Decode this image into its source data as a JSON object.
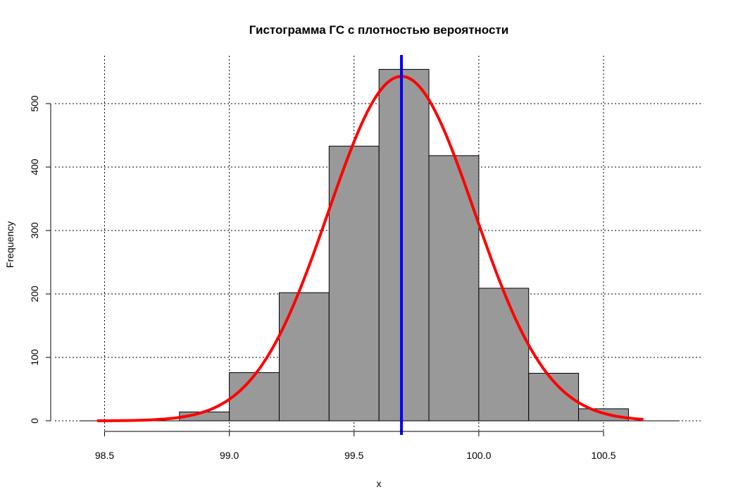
{
  "chart_data": {
    "type": "bar",
    "title": "Гистограмма ГС с плотностью вероятности",
    "xlabel": "x",
    "ylabel": "Frequency",
    "xlim": [
      98.4,
      100.8
    ],
    "ylim": [
      0,
      560
    ],
    "x_ticks": [
      "98.5",
      "99.0",
      "99.5",
      "100.0",
      "100.5"
    ],
    "y_ticks": [
      "0",
      "100",
      "200",
      "300",
      "400",
      "500"
    ],
    "grid": true,
    "bins": [
      {
        "from": 98.4,
        "to": 98.6,
        "count": 0
      },
      {
        "from": 98.6,
        "to": 98.8,
        "count": 0
      },
      {
        "from": 98.8,
        "to": 99.0,
        "count": 14
      },
      {
        "from": 99.0,
        "to": 99.2,
        "count": 76
      },
      {
        "from": 99.2,
        "to": 99.4,
        "count": 202
      },
      {
        "from": 99.4,
        "to": 99.6,
        "count": 433
      },
      {
        "from": 99.6,
        "to": 99.8,
        "count": 554
      },
      {
        "from": 99.8,
        "to": 100.0,
        "count": 418
      },
      {
        "from": 100.0,
        "to": 100.2,
        "count": 209
      },
      {
        "from": 100.2,
        "to": 100.4,
        "count": 75
      },
      {
        "from": 100.4,
        "to": 100.6,
        "count": 19
      },
      {
        "from": 100.6,
        "to": 100.8,
        "count": 0
      }
    ],
    "bar_color": "#999999",
    "density_curve": {
      "color": "#ff0000",
      "mean": 99.69,
      "sd": 0.293,
      "peak": 543,
      "x_range": [
        98.47,
        100.66
      ]
    },
    "mean_line": {
      "x": 99.69,
      "color": "#0000ff"
    }
  }
}
